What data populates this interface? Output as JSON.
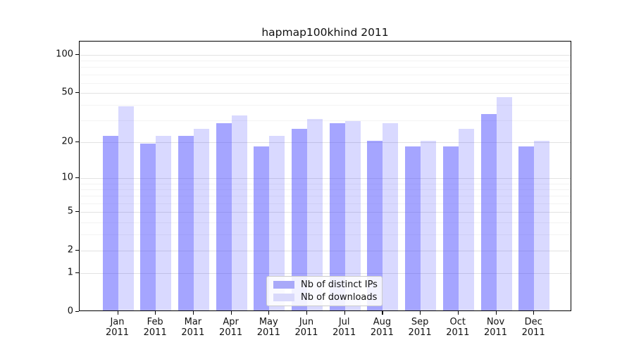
{
  "title": "hapmap100khind 2011",
  "chart_data": {
    "type": "bar",
    "title": "hapmap100khind 2011",
    "categories": [
      "Jan",
      "Feb",
      "Mar",
      "Apr",
      "May",
      "Jun",
      "Jul",
      "Aug",
      "Sep",
      "Oct",
      "Nov",
      "Dec"
    ],
    "category_year": "2011",
    "series": [
      {
        "name": "Nb of distinct IPs",
        "color": "rgba(64,64,255,0.47)",
        "legend_color": "#a9a9f9",
        "values": [
          22,
          19,
          22,
          28,
          18,
          25,
          28,
          20,
          18,
          18,
          33,
          18
        ]
      },
      {
        "name": "Nb of downloads",
        "color": "rgba(64,64,255,0.20)",
        "legend_color": "#d9d9fb",
        "values": [
          38,
          22,
          25,
          32,
          22,
          30,
          29,
          28,
          20,
          25,
          45,
          20
        ]
      }
    ],
    "y_axis": {
      "scale": "log1p",
      "ticks": [
        100,
        50,
        20,
        10,
        5,
        2,
        1,
        0
      ],
      "minor_gridlines": [
        3,
        4,
        6,
        7,
        8,
        9,
        30,
        40,
        60,
        70,
        80,
        90
      ],
      "major_gridlines": [
        1,
        2,
        5,
        10,
        20,
        50,
        100
      ],
      "ylim": [
        0,
        127
      ],
      "grid": true
    },
    "legend_position": "bottom-center"
  }
}
